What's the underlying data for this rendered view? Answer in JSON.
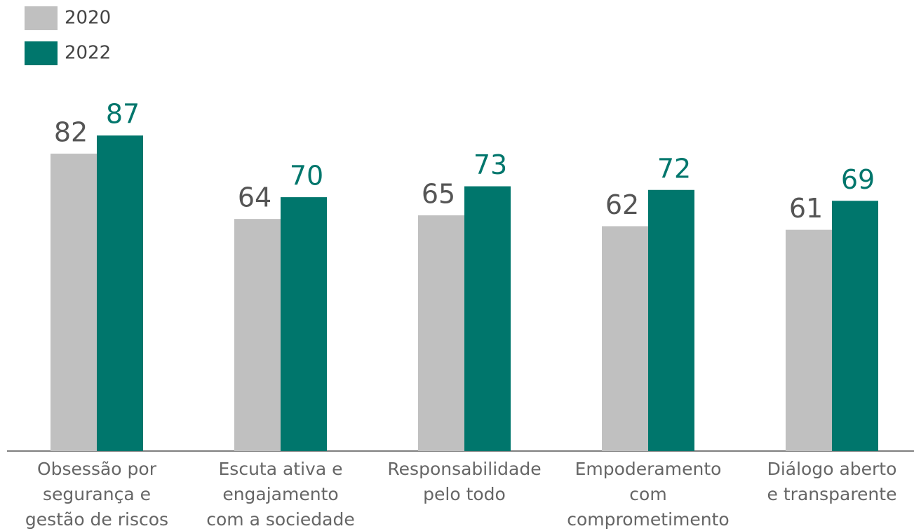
{
  "chart_data": {
    "type": "bar",
    "categories": [
      [
        "Obsessão por",
        "segurança e",
        "gestão de riscos"
      ],
      [
        "Escuta ativa e",
        "engajamento",
        "com a sociedade"
      ],
      [
        "Responsabilidade",
        "pelo todo"
      ],
      [
        "Empoderamento",
        "com",
        "comprometimento"
      ],
      [
        "Diálogo aberto",
        "e transparente"
      ]
    ],
    "series": [
      {
        "name": "2020",
        "color": "#c0c0c0",
        "label_color": "#555555",
        "values": [
          82,
          64,
          65,
          62,
          61
        ]
      },
      {
        "name": "2022",
        "color": "#00766c",
        "label_color": "#00766c",
        "values": [
          87,
          70,
          73,
          72,
          69
        ]
      }
    ],
    "ylim": [
      0,
      100
    ]
  }
}
